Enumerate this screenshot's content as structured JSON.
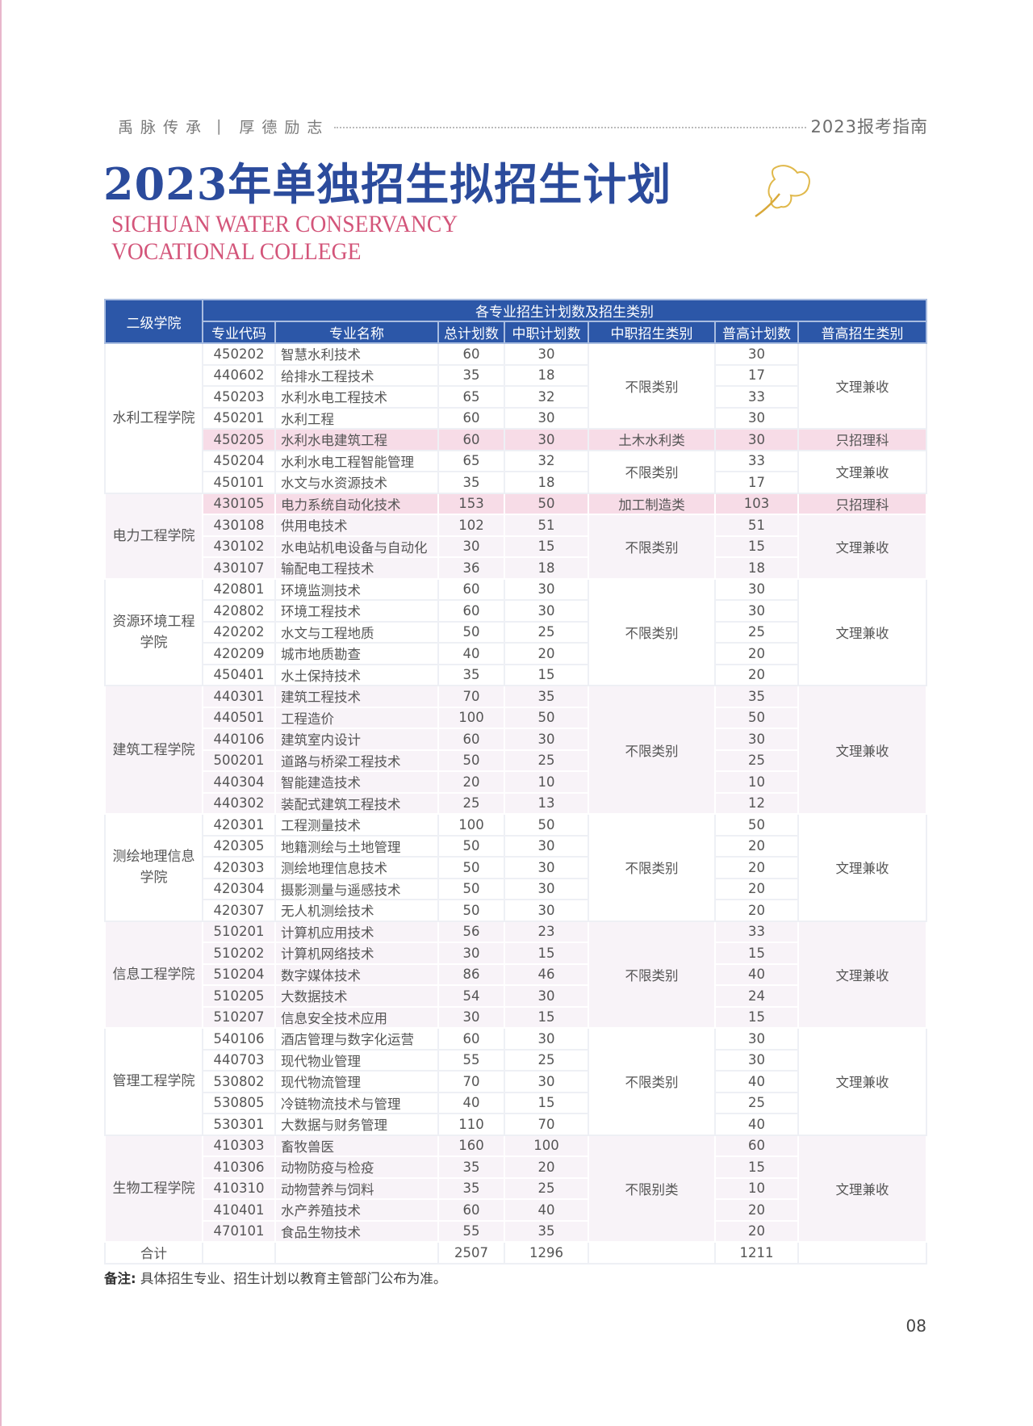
{
  "header": {
    "slogan_left": "禹脉传承",
    "slogan_right": "厚德励志",
    "guide": "2023报考指南"
  },
  "title": "2023年单独招生拟招生计划",
  "subtitle_en": [
    "SICHUAN WATER CONSERVANCY",
    "VOCATIONAL COLLEGE"
  ],
  "colors": {
    "header_bg": "#2c57a8",
    "title": "#2b4b9c",
    "subtitle": "#d3557a",
    "highlight_row": "#f7dce7",
    "tint": "#f8f3f8"
  },
  "table": {
    "col_college": "二级学院",
    "group_header": "各专业招生计划数及招生类别",
    "columns": [
      "专业代码",
      "专业名称",
      "总计划数",
      "中职计划数",
      "中职招生类别",
      "普高计划数",
      "普高招生类别"
    ],
    "colleges": [
      {
        "name": "水利工程学院",
        "segments": [
          {
            "vocational_category": "不限类别",
            "highschool_category": "文理兼收",
            "highlight": false,
            "rows": [
              [
                "450202",
                "智慧水利技术",
                "60",
                "30",
                "30"
              ],
              [
                "440602",
                "给排水工程技术",
                "35",
                "18",
                "17"
              ],
              [
                "450203",
                "水利水电工程技术",
                "65",
                "32",
                "33"
              ],
              [
                "450201",
                "水利工程",
                "60",
                "30",
                "30"
              ]
            ]
          },
          {
            "vocational_category": "土木水利类",
            "highschool_category": "只招理科",
            "highlight": true,
            "rows": [
              [
                "450205",
                "水利水电建筑工程",
                "60",
                "30",
                "30"
              ]
            ]
          },
          {
            "vocational_category": "不限类别",
            "highschool_category": "文理兼收",
            "highlight": false,
            "rows": [
              [
                "450204",
                "水利水电工程智能管理",
                "65",
                "32",
                "33"
              ],
              [
                "450101",
                "水文与水资源技术",
                "35",
                "18",
                "17"
              ]
            ]
          }
        ]
      },
      {
        "name": "电力工程学院",
        "segments": [
          {
            "vocational_category": "加工制造类",
            "highschool_category": "只招理科",
            "highlight": true,
            "rows": [
              [
                "430105",
                "电力系统自动化技术",
                "153",
                "50",
                "103"
              ]
            ]
          },
          {
            "vocational_category": "不限类别",
            "highschool_category": "文理兼收",
            "highlight": false,
            "rows": [
              [
                "430108",
                "供用电技术",
                "102",
                "51",
                "51"
              ],
              [
                "430102",
                "水电站机电设备与自动化",
                "30",
                "15",
                "15"
              ],
              [
                "430107",
                "输配电工程技术",
                "36",
                "18",
                "18"
              ]
            ]
          }
        ]
      },
      {
        "name": "资源环境工程学院",
        "segments": [
          {
            "vocational_category": "不限类别",
            "highschool_category": "文理兼收",
            "highlight": false,
            "rows": [
              [
                "420801",
                "环境监测技术",
                "60",
                "30",
                "30"
              ],
              [
                "420802",
                "环境工程技术",
                "60",
                "30",
                "30"
              ],
              [
                "420202",
                "水文与工程地质",
                "50",
                "25",
                "25"
              ],
              [
                "420209",
                "城市地质勘查",
                "40",
                "20",
                "20"
              ],
              [
                "450401",
                "水土保持技术",
                "35",
                "15",
                "20"
              ]
            ]
          }
        ]
      },
      {
        "name": "建筑工程学院",
        "segments": [
          {
            "vocational_category": "不限类别",
            "highschool_category": "文理兼收",
            "highlight": false,
            "rows": [
              [
                "440301",
                "建筑工程技术",
                "70",
                "35",
                "35"
              ],
              [
                "440501",
                "工程造价",
                "100",
                "50",
                "50"
              ],
              [
                "440106",
                "建筑室内设计",
                "60",
                "30",
                "30"
              ],
              [
                "500201",
                "道路与桥梁工程技术",
                "50",
                "25",
                "25"
              ],
              [
                "440304",
                "智能建造技术",
                "20",
                "10",
                "10"
              ],
              [
                "440302",
                "装配式建筑工程技术",
                "25",
                "13",
                "12"
              ]
            ]
          }
        ]
      },
      {
        "name": "测绘地理信息学院",
        "segments": [
          {
            "vocational_category": "不限类别",
            "highschool_category": "文理兼收",
            "highlight": false,
            "rows": [
              [
                "420301",
                "工程测量技术",
                "100",
                "50",
                "50"
              ],
              [
                "420305",
                "地籍测绘与土地管理",
                "50",
                "30",
                "20"
              ],
              [
                "420303",
                "测绘地理信息技术",
                "50",
                "30",
                "20"
              ],
              [
                "420304",
                "摄影测量与遥感技术",
                "50",
                "30",
                "20"
              ],
              [
                "420307",
                "无人机测绘技术",
                "50",
                "30",
                "20"
              ]
            ]
          }
        ]
      },
      {
        "name": "信息工程学院",
        "segments": [
          {
            "vocational_category": "不限类别",
            "highschool_category": "文理兼收",
            "highlight": false,
            "rows": [
              [
                "510201",
                "计算机应用技术",
                "56",
                "23",
                "33"
              ],
              [
                "510202",
                "计算机网络技术",
                "30",
                "15",
                "15"
              ],
              [
                "510204",
                "数字媒体技术",
                "86",
                "46",
                "40"
              ],
              [
                "510205",
                "大数据技术",
                "54",
                "30",
                "24"
              ],
              [
                "510207",
                "信息安全技术应用",
                "30",
                "15",
                "15"
              ]
            ]
          }
        ]
      },
      {
        "name": "管理工程学院",
        "segments": [
          {
            "vocational_category": "不限类别",
            "highschool_category": "文理兼收",
            "highlight": false,
            "rows": [
              [
                "540106",
                "酒店管理与数字化运营",
                "60",
                "30",
                "30"
              ],
              [
                "440703",
                "现代物业管理",
                "55",
                "25",
                "30"
              ],
              [
                "530802",
                "现代物流管理",
                "70",
                "30",
                "40"
              ],
              [
                "530805",
                "冷链物流技术与管理",
                "40",
                "15",
                "25"
              ],
              [
                "530301",
                "大数据与财务管理",
                "110",
                "70",
                "40"
              ]
            ]
          }
        ]
      },
      {
        "name": "生物工程学院",
        "segments": [
          {
            "vocational_category": "不限别类",
            "highschool_category": "文理兼收",
            "highlight": false,
            "rows": [
              [
                "410303",
                "畜牧兽医",
                "160",
                "100",
                "60"
              ],
              [
                "410306",
                "动物防疫与检疫",
                "35",
                "20",
                "15"
              ],
              [
                "410310",
                "动物营养与饲料",
                "35",
                "25",
                "10"
              ],
              [
                "410401",
                "水产养殖技术",
                "60",
                "40",
                "20"
              ],
              [
                "470101",
                "食品生物技术",
                "55",
                "35",
                "20"
              ]
            ]
          }
        ]
      }
    ],
    "total": {
      "label": "合计",
      "total_plan": "2507",
      "vocational_plan": "1296",
      "highschool_plan": "1211"
    }
  },
  "note": {
    "label": "备注:",
    "text": "具体招生专业、招生计划以教育主管部门公布为准。"
  },
  "page_number": "08"
}
